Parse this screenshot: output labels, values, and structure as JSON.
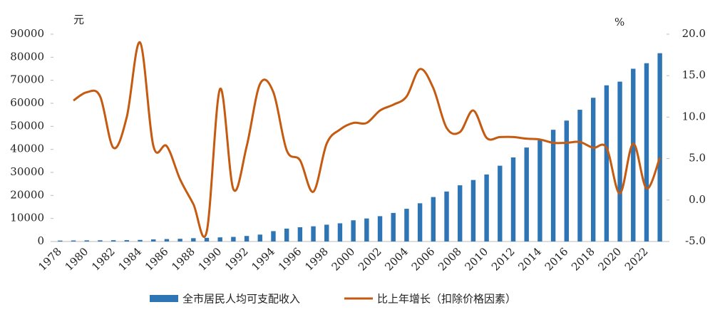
{
  "chart_data": {
    "type": "bar-line",
    "y_unit": "元",
    "y2_unit": "%",
    "categories": [
      "1978",
      null,
      "1980",
      null,
      "1982",
      null,
      "1984",
      null,
      "1986",
      null,
      "1988",
      null,
      "1990",
      null,
      "1992",
      null,
      "1994",
      null,
      "1996",
      null,
      "1998",
      null,
      "2000",
      null,
      "2002",
      null,
      "2004",
      null,
      "2006",
      null,
      "2008",
      null,
      "2010",
      null,
      "2012",
      null,
      "2014",
      null,
      "2016",
      null,
      "2018",
      null,
      "2020",
      null,
      "2022",
      null
    ],
    "series": [
      {
        "name": "全市居民人均可支配收入",
        "type": "bar",
        "color": "#2e75b6",
        "values": [
          400,
          450,
          500,
          520,
          560,
          590,
          690,
          910,
          1070,
          1180,
          1440,
          1600,
          1800,
          2000,
          2400,
          3000,
          4500,
          5600,
          6200,
          6600,
          7300,
          7900,
          9200,
          10000,
          11000,
          12400,
          14200,
          16600,
          19300,
          21700,
          24400,
          26700,
          29100,
          32900,
          36500,
          40800,
          43900,
          48500,
          52500,
          57200,
          62400,
          67800,
          69400,
          75000,
          77400,
          81750
        ]
      },
      {
        "name": "比上年增长（扣除价格因素）",
        "type": "line",
        "axis": "y2",
        "color": "#c55a11",
        "values": [
          null,
          12.0,
          13.0,
          12.5,
          6.3,
          10.0,
          19.0,
          6.5,
          6.5,
          2.5,
          -0.5,
          -3.8,
          13.4,
          1.3,
          6.5,
          14.0,
          13.0,
          6.0,
          4.8,
          1.0,
          6.8,
          8.5,
          9.3,
          9.3,
          10.8,
          11.5,
          12.5,
          15.8,
          13.5,
          8.7,
          8.2,
          10.8,
          7.5,
          7.6,
          7.6,
          7.4,
          7.3,
          6.9,
          6.9,
          7.0,
          6.3,
          6.3,
          0.8,
          6.8,
          1.4,
          5.1
        ]
      }
    ],
    "ylim": [
      0,
      90000
    ],
    "yticks": [
      0,
      10000,
      20000,
      30000,
      40000,
      50000,
      60000,
      70000,
      80000,
      90000
    ],
    "y2lim": [
      -5,
      20
    ],
    "y2ticks": [
      {
        "value": -5,
        "label": "-5.0"
      },
      {
        "value": 0,
        "label": "0.0"
      },
      {
        "value": 5,
        "label": "5.0"
      },
      {
        "value": 10,
        "label": "10.0"
      },
      {
        "value": 15,
        "label": "15.0"
      },
      {
        "value": 20,
        "label": "20.0"
      }
    ],
    "legend": "bottom"
  }
}
